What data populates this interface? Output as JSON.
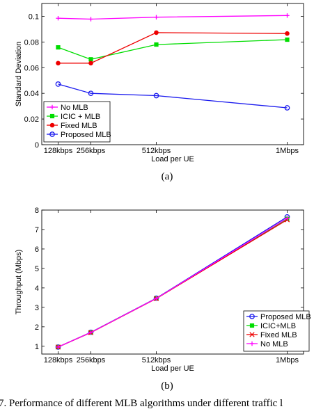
{
  "figure": {
    "caption": "7.   Performance of different MLB algorithms under different traffic l"
  },
  "chart_data": [
    {
      "type": "line",
      "panel_label": "(a)",
      "xlabel": "Load per UE",
      "ylabel": "Standard Deviation",
      "x": [
        128,
        256,
        512,
        1024
      ],
      "xticklabels": [
        "128kbps",
        "256kbps",
        "512kbps",
        "1Mbps"
      ],
      "ylim": [
        0,
        0.11
      ],
      "yticks": [
        0,
        0.02,
        0.04,
        0.06,
        0.08,
        0.1
      ],
      "yticklabels": [
        "0",
        "0.02",
        "0.04",
        "0.06",
        "0.08",
        "0.1"
      ],
      "grid": false,
      "legend_position": "bottom-left",
      "series": [
        {
          "name": "No MLB",
          "color": "#ff00ff",
          "marker": "plus",
          "values": [
            0.0985,
            0.0978,
            0.0993,
            0.1006
          ]
        },
        {
          "name": "ICIC + MLB",
          "color": "#00dd00",
          "marker": "square",
          "values": [
            0.0758,
            0.0665,
            0.078,
            0.0818
          ]
        },
        {
          "name": "Fixed MLB",
          "color": "#ee0000",
          "marker": "dot",
          "values": [
            0.0635,
            0.0635,
            0.0873,
            0.0866
          ]
        },
        {
          "name": "Proposed MLB",
          "color": "#1a1aee",
          "marker": "circle",
          "values": [
            0.0472,
            0.04,
            0.0382,
            0.0287
          ]
        }
      ]
    },
    {
      "type": "line",
      "panel_label": "(b)",
      "xlabel": "Load per UE",
      "ylabel": "Throughput (Mbps)",
      "x": [
        128,
        256,
        512,
        1024
      ],
      "xticklabels": [
        "128kbps",
        "256kbps",
        "512kbps",
        "1Mbps"
      ],
      "ylim": [
        0.6,
        8
      ],
      "yticks": [
        1,
        2,
        3,
        4,
        5,
        6,
        7,
        8
      ],
      "yticklabels": [
        "1",
        "2",
        "3",
        "4",
        "5",
        "6",
        "7",
        "8"
      ],
      "grid": false,
      "legend_position": "bottom-right",
      "series": [
        {
          "name": "Proposed MLB",
          "color": "#1a1aee",
          "marker": "circle",
          "values": [
            0.96,
            1.72,
            3.47,
            7.65
          ]
        },
        {
          "name": "ICIC+MLB",
          "color": "#00dd00",
          "marker": "square",
          "values": [
            0.96,
            1.71,
            3.46,
            7.55
          ]
        },
        {
          "name": "Fixed MLB",
          "color": "#ee0000",
          "marker": "x",
          "values": [
            0.96,
            1.7,
            3.45,
            7.5
          ]
        },
        {
          "name": "No MLB",
          "color": "#ff00ff",
          "marker": "plus",
          "values": [
            0.96,
            1.71,
            3.46,
            7.58
          ]
        }
      ]
    }
  ]
}
